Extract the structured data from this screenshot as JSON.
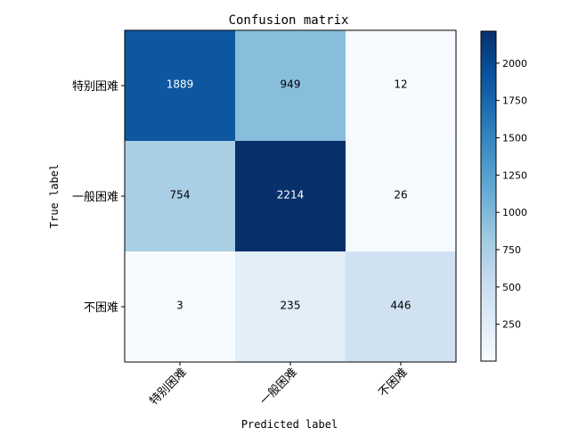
{
  "chart_data": {
    "type": "heatmap",
    "title": "Confusion matrix",
    "xlabel": "Predicted label",
    "ylabel": "True label",
    "x_categories": [
      "特别困难",
      "一般困难",
      "不困难"
    ],
    "y_categories": [
      "特别困难",
      "一般困难",
      "不困难"
    ],
    "matrix": [
      [
        1889,
        949,
        12
      ],
      [
        754,
        2214,
        26
      ],
      [
        3,
        235,
        446
      ]
    ],
    "colormap": "Blues",
    "colormap_stops": [
      "#f7fbff",
      "#deebf7",
      "#c6dbef",
      "#9ecae1",
      "#6baed6",
      "#4292c6",
      "#2171b5",
      "#08519c",
      "#08306b"
    ],
    "colorbar": {
      "min": 3,
      "max": 2214,
      "ticks": [
        250,
        500,
        750,
        1000,
        1250,
        1500,
        1750,
        2000,
        2250
      ]
    },
    "text_threshold": 1107,
    "text_color_light": "#ffffff",
    "text_color_dark": "#000000",
    "x_tick_rotation_deg": 45
  }
}
